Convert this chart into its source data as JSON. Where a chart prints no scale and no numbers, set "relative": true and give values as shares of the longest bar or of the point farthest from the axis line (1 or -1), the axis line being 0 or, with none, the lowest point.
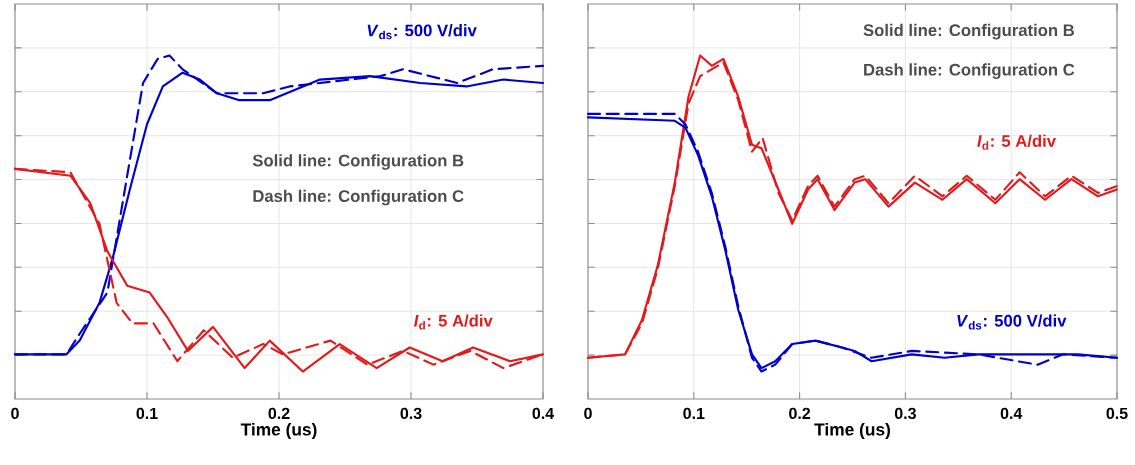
{
  "chart_data": [
    {
      "type": "line",
      "relative": true,
      "xlabel": "Time (us)",
      "xlim": [
        0,
        0.4
      ],
      "xticks": [
        0,
        0.1,
        0.2,
        0.3,
        0.4
      ],
      "grid": true,
      "annotations": [
        "*V*$_{ds}$: 500 V/div",
        "Solid line: Configuration B",
        "Dash line: Configuration C",
        "*I*$_{d}$: 5 A/div"
      ],
      "series": [
        {
          "color": "#0000cc",
          "line_style": "solid",
          "x": [
            0,
            0.039,
            0.049,
            0.064,
            0.074,
            0.087,
            0.1,
            0.112,
            0.127,
            0.14,
            0.153,
            0.17,
            0.186,
            0.193,
            0.231,
            0.269,
            0.307,
            0.342,
            0.37,
            0.4
          ],
          "values": [
            0.13,
            0.13,
            0.17,
            0.28,
            0.41,
            0.61,
            0.8,
            0.91,
            0.95,
            0.93,
            0.89,
            0.87,
            0.87,
            0.87,
            0.93,
            0.94,
            0.92,
            0.91,
            0.93,
            0.92
          ]
        },
        {
          "color": "#0000cc",
          "line_style": "dashed",
          "x": [
            0,
            0.039,
            0.049,
            0.07,
            0.085,
            0.097,
            0.108,
            0.117,
            0.127,
            0.153,
            0.188,
            0.208,
            0.277,
            0.294,
            0.335,
            0.362,
            0.4
          ],
          "values": [
            0.13,
            0.13,
            0.19,
            0.31,
            0.65,
            0.92,
            0.99,
            1.0,
            0.96,
            0.89,
            0.89,
            0.91,
            0.94,
            0.96,
            0.92,
            0.96,
            0.97
          ]
        },
        {
          "color": "#e31a1c",
          "line_style": "solid",
          "x": [
            0,
            0.042,
            0.057,
            0.07,
            0.085,
            0.102,
            0.115,
            0.131,
            0.15,
            0.174,
            0.193,
            0.218,
            0.246,
            0.274,
            0.299,
            0.324,
            0.347,
            0.375,
            0.4
          ],
          "values": [
            0.67,
            0.65,
            0.57,
            0.43,
            0.33,
            0.31,
            0.24,
            0.14,
            0.21,
            0.09,
            0.17,
            0.08,
            0.16,
            0.09,
            0.15,
            0.11,
            0.15,
            0.11,
            0.13
          ]
        },
        {
          "color": "#e31a1c",
          "line_style": "dashed",
          "x": [
            0,
            0.042,
            0.064,
            0.077,
            0.089,
            0.105,
            0.123,
            0.143,
            0.165,
            0.188,
            0.203,
            0.239,
            0.267,
            0.294,
            0.317,
            0.345,
            0.37,
            0.4
          ],
          "values": [
            0.67,
            0.66,
            0.51,
            0.28,
            0.22,
            0.22,
            0.11,
            0.2,
            0.12,
            0.16,
            0.13,
            0.17,
            0.1,
            0.14,
            0.1,
            0.14,
            0.09,
            0.13
          ]
        }
      ]
    },
    {
      "type": "line",
      "relative": true,
      "xlabel": "Time (us)",
      "xlim": [
        0,
        0.5
      ],
      "xticks": [
        0,
        0.1,
        0.2,
        0.3,
        0.4,
        0.5
      ],
      "grid": true,
      "annotations": [
        "Solid line: Configuration B",
        "Dash line: Configuration C",
        "*I*$_{d}$: 5 A/div",
        "*V*$_{ds}$: 500 V/div"
      ],
      "series": [
        {
          "color": "#e31a1c",
          "line_style": "solid",
          "x": [
            0,
            0.035,
            0.051,
            0.066,
            0.082,
            0.095,
            0.106,
            0.117,
            0.128,
            0.142,
            0.155,
            0.164,
            0.18,
            0.193,
            0.208,
            0.217,
            0.233,
            0.252,
            0.262,
            0.284,
            0.309,
            0.335,
            0.358,
            0.385,
            0.408,
            0.432,
            0.457,
            0.482,
            0.5
          ],
          "values": [
            0.12,
            0.13,
            0.23,
            0.39,
            0.63,
            0.88,
            1.0,
            0.97,
            0.99,
            0.88,
            0.74,
            0.73,
            0.61,
            0.51,
            0.61,
            0.64,
            0.55,
            0.63,
            0.64,
            0.56,
            0.63,
            0.58,
            0.64,
            0.57,
            0.64,
            0.58,
            0.64,
            0.59,
            0.61
          ]
        },
        {
          "color": "#e31a1c",
          "line_style": "dashed",
          "x": [
            0,
            0.035,
            0.051,
            0.066,
            0.082,
            0.095,
            0.106,
            0.117,
            0.128,
            0.142,
            0.155,
            0.165,
            0.18,
            0.193,
            0.208,
            0.217,
            0.233,
            0.252,
            0.262,
            0.284,
            0.309,
            0.335,
            0.358,
            0.385,
            0.408,
            0.432,
            0.457,
            0.482,
            0.5
          ],
          "values": [
            0.12,
            0.13,
            0.22,
            0.38,
            0.62,
            0.86,
            0.94,
            0.96,
            0.98,
            0.87,
            0.72,
            0.76,
            0.6,
            0.52,
            0.62,
            0.65,
            0.56,
            0.64,
            0.65,
            0.57,
            0.65,
            0.59,
            0.65,
            0.58,
            0.66,
            0.59,
            0.65,
            0.6,
            0.62
          ]
        },
        {
          "color": "#0000cc",
          "line_style": "solid",
          "x": [
            0,
            0.082,
            0.092,
            0.104,
            0.117,
            0.13,
            0.142,
            0.155,
            0.164,
            0.177,
            0.193,
            0.215,
            0.24,
            0.252,
            0.268,
            0.306,
            0.337,
            0.369,
            0.416,
            0.463,
            0.5
          ],
          "values": [
            0.82,
            0.81,
            0.79,
            0.71,
            0.59,
            0.43,
            0.26,
            0.13,
            0.09,
            0.11,
            0.16,
            0.17,
            0.15,
            0.14,
            0.11,
            0.13,
            0.12,
            0.13,
            0.13,
            0.13,
            0.12
          ]
        },
        {
          "color": "#0000cc",
          "line_style": "dashed",
          "x": [
            0,
            0.082,
            0.092,
            0.104,
            0.117,
            0.13,
            0.142,
            0.155,
            0.164,
            0.177,
            0.193,
            0.215,
            0.24,
            0.268,
            0.306,
            0.369,
            0.406,
            0.425,
            0.449,
            0.5
          ],
          "values": [
            0.83,
            0.83,
            0.8,
            0.72,
            0.6,
            0.44,
            0.27,
            0.12,
            0.08,
            0.1,
            0.16,
            0.17,
            0.15,
            0.12,
            0.14,
            0.13,
            0.11,
            0.1,
            0.13,
            0.12
          ]
        }
      ]
    }
  ]
}
